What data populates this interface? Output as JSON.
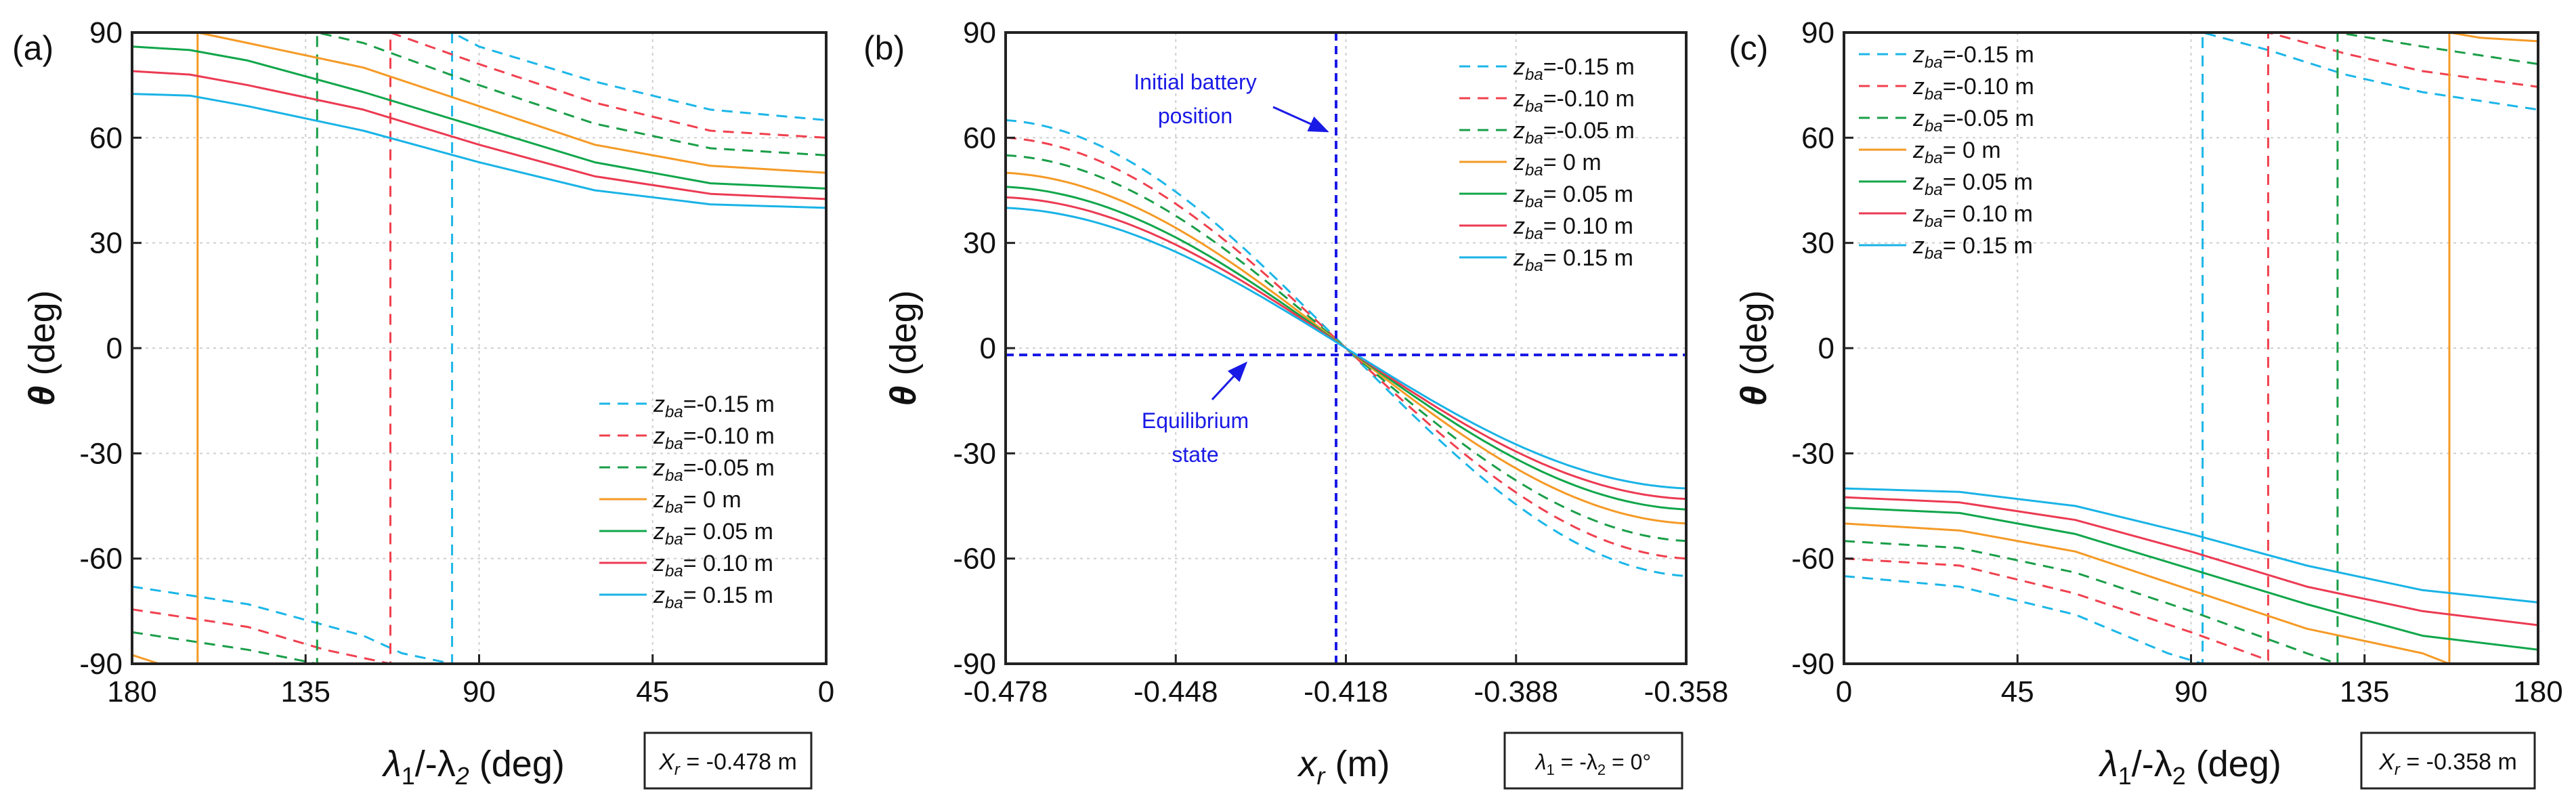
{
  "figure": {
    "panels": [
      {
        "letter": "(a)",
        "xlabel_main": "λ",
        "xlabel_sub1": "1",
        "xlabel_mid": "/-λ",
        "xlabel_sub2": "2",
        "xlabel_unit": " (deg)",
        "ylabel_main": "θ",
        "ylabel_unit": " (deg)",
        "note_main": "X",
        "note_sub": "r",
        "note_rest": " = -0.478 m"
      },
      {
        "letter": "(b)",
        "xlabel_main": "x",
        "xlabel_sub": "r",
        "xlabel_unit": " (m)",
        "ylabel_main": "θ",
        "ylabel_unit": " (deg)",
        "note_pre": "λ",
        "note_sub1": "1",
        "note_mid": " = -λ",
        "note_sub2": "2",
        "note_rest": " = 0°",
        "annotation_top_line1": "Initial battery",
        "annotation_top_line2": "position",
        "annotation_bottom_line1": "Equilibrium",
        "annotation_bottom_line2": "state"
      },
      {
        "letter": "(c)",
        "xlabel_main": "λ",
        "xlabel_sub1": "1",
        "xlabel_mid": "/-λ",
        "xlabel_sub2": "2",
        "xlabel_unit": " (deg)",
        "ylabel_main": "θ",
        "ylabel_unit": " (deg)",
        "note_main": "X",
        "note_sub": "r",
        "note_rest": " = -0.358 m"
      }
    ]
  },
  "legend": [
    {
      "sym": "z",
      "sub": "ba",
      "text": "=-0.15 m",
      "color": "#1bb6e8",
      "dash": true
    },
    {
      "sym": "z",
      "sub": "ba",
      "text": "=-0.10 m",
      "color": "#f0404e",
      "dash": true
    },
    {
      "sym": "z",
      "sub": "ba",
      "text": "=-0.05 m",
      "color": "#1a9e48",
      "dash": true
    },
    {
      "sym": "z",
      "sub": "ba",
      "text": "= 0 m",
      "color": "#f59a26",
      "dash": false
    },
    {
      "sym": "z",
      "sub": "ba",
      "text": "= 0.05 m",
      "color": "#10a64a",
      "dash": false
    },
    {
      "sym": "z",
      "sub": "ba",
      "text": "= 0.10 m",
      "color": "#ec3a52",
      "dash": false
    },
    {
      "sym": "z",
      "sub": "ba",
      "text": "= 0.15 m",
      "color": "#19b3e6",
      "dash": false
    }
  ],
  "chart_data": [
    {
      "type": "line",
      "panel": "(a)",
      "xlabel": "λ1/-λ2 (deg)",
      "ylabel": "θ (deg)",
      "xlim": [
        180,
        0
      ],
      "ylim": [
        -90,
        90
      ],
      "xticks": [
        "180",
        "135",
        "90",
        "45",
        "0"
      ],
      "yticks": [
        "90",
        "60",
        "30",
        "0",
        "-30",
        "-60",
        "-90"
      ],
      "note": "Xr = -0.478 m",
      "series": [
        {
          "name": "zba=-0.15 m",
          "points": [
            [
              180,
              -68
            ],
            [
              150,
              -73
            ],
            [
              120,
              -82
            ],
            [
              110,
              -87
            ],
            [
              97,
              -90
            ],
            [
              97,
              90
            ],
            [
              90,
              86
            ],
            [
              60,
              76
            ],
            [
              30,
              68
            ],
            [
              0,
              65
            ]
          ]
        },
        {
          "name": "zba=-0.10 m",
          "points": [
            [
              180,
              -74.5
            ],
            [
              150,
              -79.5
            ],
            [
              130,
              -86
            ],
            [
              113,
              -90
            ],
            [
              113,
              90
            ],
            [
              90,
              81
            ],
            [
              60,
              70
            ],
            [
              30,
              62
            ],
            [
              0,
              60
            ]
          ]
        },
        {
          "name": "zba=-0.05 m",
          "points": [
            [
              180,
              -81
            ],
            [
              150,
              -86
            ],
            [
              132,
              -90
            ],
            [
              132,
              90
            ],
            [
              120,
              87
            ],
            [
              90,
              75
            ],
            [
              60,
              64
            ],
            [
              30,
              57
            ],
            [
              0,
              55
            ]
          ]
        },
        {
          "name": "zba= 0 m",
          "points": [
            [
              180,
              -87.5
            ],
            [
              173,
              -90
            ],
            [
              163,
              -90
            ],
            [
              163,
              90
            ],
            [
              150,
              87
            ],
            [
              120,
              80
            ],
            [
              90,
              69
            ],
            [
              60,
              58
            ],
            [
              30,
              52
            ],
            [
              0,
              50
            ]
          ]
        },
        {
          "name": "zba= 0.05 m",
          "points": [
            [
              180,
              86
            ],
            [
              165,
              85
            ],
            [
              150,
              82
            ],
            [
              120,
              73
            ],
            [
              90,
              63
            ],
            [
              60,
              53
            ],
            [
              30,
              47
            ],
            [
              0,
              45.5
            ]
          ]
        },
        {
          "name": "zba= 0.10 m",
          "points": [
            [
              180,
              79
            ],
            [
              165,
              78
            ],
            [
              150,
              75
            ],
            [
              120,
              68
            ],
            [
              90,
              58
            ],
            [
              60,
              49
            ],
            [
              30,
              44
            ],
            [
              0,
              42.5
            ]
          ]
        },
        {
          "name": "zba= 0.15 m",
          "points": [
            [
              180,
              72.5
            ],
            [
              165,
              72
            ],
            [
              150,
              69
            ],
            [
              120,
              62
            ],
            [
              90,
              53
            ],
            [
              60,
              45
            ],
            [
              30,
              41
            ],
            [
              0,
              40
            ]
          ]
        }
      ]
    },
    {
      "type": "line",
      "panel": "(b)",
      "xlabel": "xr (m)",
      "ylabel": "θ (deg)",
      "xlim": [
        -0.478,
        -0.358
      ],
      "ylim": [
        -90,
        90
      ],
      "xticks": [
        "-0.478",
        "-0.448",
        "-0.418",
        "-0.388",
        "-0.358"
      ],
      "yticks": [
        "90",
        "60",
        "30",
        "0",
        "-30",
        "-60",
        "-90"
      ],
      "note": "λ1 = -λ2 = 0°",
      "reference_lines": {
        "x": -0.418,
        "y": 0
      },
      "annotations": [
        "Initial battery position",
        "Equilibrium state"
      ],
      "series": [
        {
          "name": "zba=-0.15 m",
          "values_at_ends": [
            65,
            -65
          ]
        },
        {
          "name": "zba=-0.10 m",
          "values_at_ends": [
            60,
            -60
          ]
        },
        {
          "name": "zba=-0.05 m",
          "values_at_ends": [
            55,
            -55
          ]
        },
        {
          "name": "zba= 0 m",
          "values_at_ends": [
            50,
            -50
          ]
        },
        {
          "name": "zba= 0.05 m",
          "values_at_ends": [
            46,
            -46
          ]
        },
        {
          "name": "zba= 0.10 m",
          "values_at_ends": [
            43,
            -43
          ]
        },
        {
          "name": "zba= 0.15 m",
          "values_at_ends": [
            40,
            -40
          ]
        }
      ]
    },
    {
      "type": "line",
      "panel": "(c)",
      "xlabel": "λ1/-λ2 (deg)",
      "ylabel": "θ (deg)",
      "xlim": [
        0,
        180
      ],
      "ylim": [
        -90,
        90
      ],
      "xticks": [
        "0",
        "45",
        "90",
        "135",
        "180"
      ],
      "yticks": [
        "90",
        "60",
        "30",
        "0",
        "-30",
        "-60",
        "-90"
      ],
      "note": "Xr = -0.358 m",
      "series": [
        {
          "name": "zba=-0.15 m",
          "points": [
            [
              0,
              -65
            ],
            [
              30,
              -68
            ],
            [
              60,
              -76
            ],
            [
              84,
              -87
            ],
            [
              93,
              -90
            ],
            [
              93,
              90
            ],
            [
              110,
              85
            ],
            [
              130,
              78
            ],
            [
              150,
              73
            ],
            [
              180,
              68
            ]
          ]
        },
        {
          "name": "zba=-0.10 m",
          "points": [
            [
              0,
              -60
            ],
            [
              30,
              -62
            ],
            [
              60,
              -70
            ],
            [
              90,
              -81
            ],
            [
              110,
              -89
            ],
            [
              110,
              90
            ],
            [
              130,
              84
            ],
            [
              150,
              79
            ],
            [
              180,
              74.5
            ]
          ]
        },
        {
          "name": "zba=-0.05 m",
          "points": [
            [
              0,
              -55
            ],
            [
              30,
              -57
            ],
            [
              60,
              -64
            ],
            [
              90,
              -75
            ],
            [
              120,
              -87
            ],
            [
              128,
              -90
            ],
            [
              128,
              90
            ],
            [
              150,
              86
            ],
            [
              180,
              81
            ]
          ]
        },
        {
          "name": "zba= 0 m",
          "points": [
            [
              0,
              -50
            ],
            [
              30,
              -52
            ],
            [
              60,
              -58
            ],
            [
              90,
              -69
            ],
            [
              120,
              -80
            ],
            [
              150,
              -87
            ],
            [
              157,
              -90
            ],
            [
              157,
              90
            ],
            [
              165,
              88.5
            ],
            [
              180,
              87.5
            ]
          ]
        },
        {
          "name": "zba= 0.05 m",
          "points": [
            [
              0,
              -45.5
            ],
            [
              30,
              -47
            ],
            [
              60,
              -53
            ],
            [
              90,
              -63
            ],
            [
              120,
              -73
            ],
            [
              150,
              -82
            ],
            [
              180,
              -86
            ]
          ]
        },
        {
          "name": "zba= 0.10 m",
          "points": [
            [
              0,
              -42.5
            ],
            [
              30,
              -44
            ],
            [
              60,
              -49
            ],
            [
              90,
              -58
            ],
            [
              120,
              -68
            ],
            [
              150,
              -75
            ],
            [
              180,
              -79
            ]
          ]
        },
        {
          "name": "zba= 0.15 m",
          "points": [
            [
              0,
              -40
            ],
            [
              30,
              -41
            ],
            [
              60,
              -45
            ],
            [
              90,
              -53
            ],
            [
              120,
              -62
            ],
            [
              150,
              -69
            ],
            [
              180,
              -72.5
            ]
          ]
        }
      ]
    }
  ]
}
